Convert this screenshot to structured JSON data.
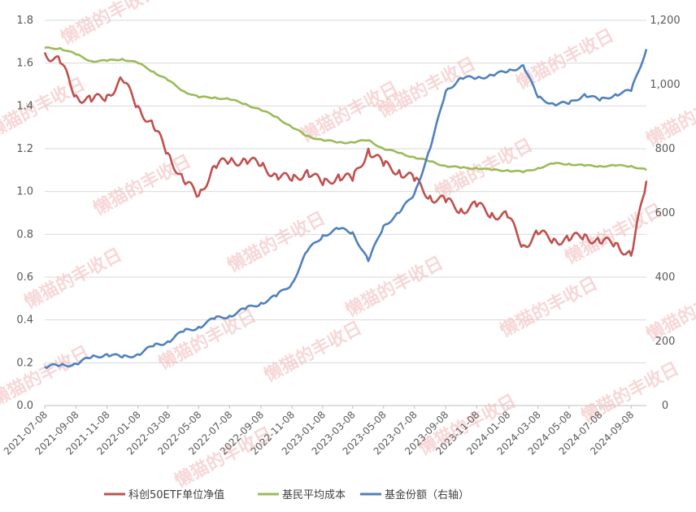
{
  "chart_data": {
    "type": "line",
    "title": "",
    "xlabel": "",
    "ylabel": "",
    "ylim_left": [
      0,
      1.8
    ],
    "ylim_right": [
      0,
      1200
    ],
    "yticks_left": [
      "0.0",
      "0.2",
      "0.4",
      "0.6",
      "0.8",
      "1.0",
      "1.2",
      "1.4",
      "1.6",
      "1.8"
    ],
    "yticks_right": [
      "0",
      "200",
      "400",
      "600",
      "800",
      "1,000",
      "1,200"
    ],
    "x_tick_labels": [
      "2021-07-08",
      "2021-09-08",
      "2021-11-08",
      "2022-01-08",
      "2022-03-08",
      "2022-05-08",
      "2022-07-08",
      "2022-09-08",
      "2022-11-08",
      "2023-01-08",
      "2023-03-08",
      "2023-05-08",
      "2023-07-08",
      "2023-09-08",
      "2023-11-08",
      "2024-01-08",
      "2024-03-08",
      "2024-05-08",
      "2024-07-08",
      "2024-09-08"
    ],
    "grid": true,
    "legend_position": "bottom",
    "watermark": "懒猫的丰收日",
    "x_dates": [
      "2021-07-08",
      "2021-08-08",
      "2021-09-08",
      "2021-10-08",
      "2021-11-08",
      "2021-12-08",
      "2022-01-08",
      "2022-02-08",
      "2022-03-08",
      "2022-04-08",
      "2022-05-08",
      "2022-06-08",
      "2022-07-08",
      "2022-08-08",
      "2022-09-08",
      "2022-10-08",
      "2022-11-08",
      "2022-12-08",
      "2023-01-08",
      "2023-02-08",
      "2023-03-08",
      "2023-04-08",
      "2023-05-08",
      "2023-06-08",
      "2023-07-08",
      "2023-08-08",
      "2023-09-08",
      "2023-10-08",
      "2023-11-08",
      "2023-12-08",
      "2024-01-08",
      "2024-02-08",
      "2024-03-08",
      "2024-04-08",
      "2024-05-08",
      "2024-06-08",
      "2024-07-08",
      "2024-08-08",
      "2024-09-08",
      "2024-10-08"
    ],
    "series": [
      {
        "name": "科创50ETF单位净值",
        "axis": "left",
        "color": "#c0504d",
        "values": [
          1.65,
          1.6,
          1.45,
          1.42,
          1.45,
          1.52,
          1.4,
          1.3,
          1.18,
          1.05,
          0.98,
          1.12,
          1.14,
          1.15,
          1.12,
          1.08,
          1.05,
          1.1,
          1.03,
          1.08,
          1.05,
          1.2,
          1.12,
          1.1,
          1.05,
          0.98,
          0.95,
          0.92,
          0.93,
          0.9,
          0.88,
          0.75,
          0.8,
          0.78,
          0.77,
          0.8,
          0.76,
          0.76,
          0.7,
          1.05
        ]
      },
      {
        "name": "基民平均成本",
        "axis": "left",
        "color": "#9bbb59",
        "values": [
          1.67,
          1.67,
          1.64,
          1.61,
          1.61,
          1.62,
          1.6,
          1.56,
          1.52,
          1.47,
          1.44,
          1.44,
          1.43,
          1.41,
          1.38,
          1.35,
          1.3,
          1.26,
          1.24,
          1.23,
          1.23,
          1.24,
          1.2,
          1.18,
          1.16,
          1.14,
          1.12,
          1.11,
          1.11,
          1.1,
          1.1,
          1.09,
          1.11,
          1.13,
          1.13,
          1.12,
          1.12,
          1.12,
          1.12,
          1.1
        ]
      },
      {
        "name": "基金份额（右轴）",
        "axis": "right",
        "color": "#4f81bd",
        "values": [
          120,
          125,
          130,
          150,
          160,
          150,
          160,
          185,
          200,
          230,
          245,
          270,
          280,
          300,
          320,
          340,
          380,
          480,
          530,
          550,
          540,
          450,
          560,
          600,
          660,
          800,
          980,
          1020,
          1020,
          1030,
          1040,
          1060,
          960,
          940,
          940,
          970,
          950,
          970,
          980,
          1110
        ]
      }
    ]
  }
}
